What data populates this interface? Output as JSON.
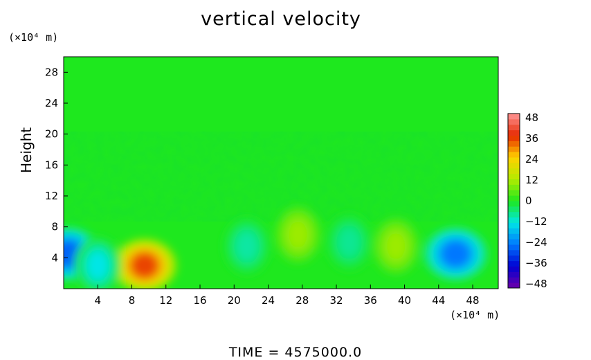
{
  "chart_data": {
    "type": "heatmap",
    "title": "vertical velocity",
    "xlabel_unit": "(×10⁴ m)",
    "ylabel": "Height",
    "ylabel_unit": "(×10⁴ m)",
    "x_ticks": [
      "4",
      "8",
      "12",
      "16",
      "20",
      "24",
      "28",
      "32",
      "36",
      "40",
      "44",
      "48"
    ],
    "y_ticks": [
      "4",
      "8",
      "12",
      "16",
      "20",
      "24",
      "28"
    ],
    "xlim": [
      0,
      51
    ],
    "ylim": [
      0,
      30
    ],
    "colorbar": {
      "ticks": [
        "48",
        "36",
        "24",
        "12",
        "0",
        "−12",
        "−24",
        "−36",
        "−48"
      ],
      "range": [
        -48,
        48
      ]
    },
    "features": [
      {
        "x": 9.5,
        "y": 3.0,
        "value": 34
      },
      {
        "x": 0.5,
        "y": 4.5,
        "value": -26
      },
      {
        "x": 46.0,
        "y": 4.5,
        "value": -24
      },
      {
        "x": 27.5,
        "y": 7.0,
        "value": 10
      },
      {
        "x": 39.0,
        "y": 5.5,
        "value": 10
      },
      {
        "x": 21.5,
        "y": 5.5,
        "value": -8
      },
      {
        "x": 33.5,
        "y": 6.0,
        "value": -7
      },
      {
        "x": 4.0,
        "y": 3.0,
        "value": -12
      }
    ],
    "background_value": 1
  },
  "footer": "TIME  =  4575000.0"
}
